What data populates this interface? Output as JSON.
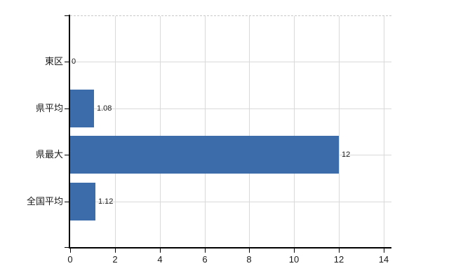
{
  "chart_data": {
    "type": "bar",
    "orientation": "horizontal",
    "title": "",
    "xlabel": "",
    "ylabel": "",
    "categories": [
      "東区",
      "県平均",
      "県最大",
      "全国平均"
    ],
    "values": [
      0,
      1.08,
      12,
      1.12
    ],
    "value_labels": [
      "0",
      "1.08",
      "12",
      "1.12"
    ],
    "x_ticks": [
      0,
      2,
      4,
      6,
      8,
      10,
      12,
      14
    ],
    "xlim": [
      0,
      14
    ],
    "grid": true,
    "legend": false,
    "colors": {
      "bar": "#3d6cab",
      "gridline": "#d9d9d9",
      "plot_border_dashed": "#c8c8c8",
      "axis": "#000000",
      "text": "#1a1a1a",
      "background": "#ffffff"
    }
  }
}
